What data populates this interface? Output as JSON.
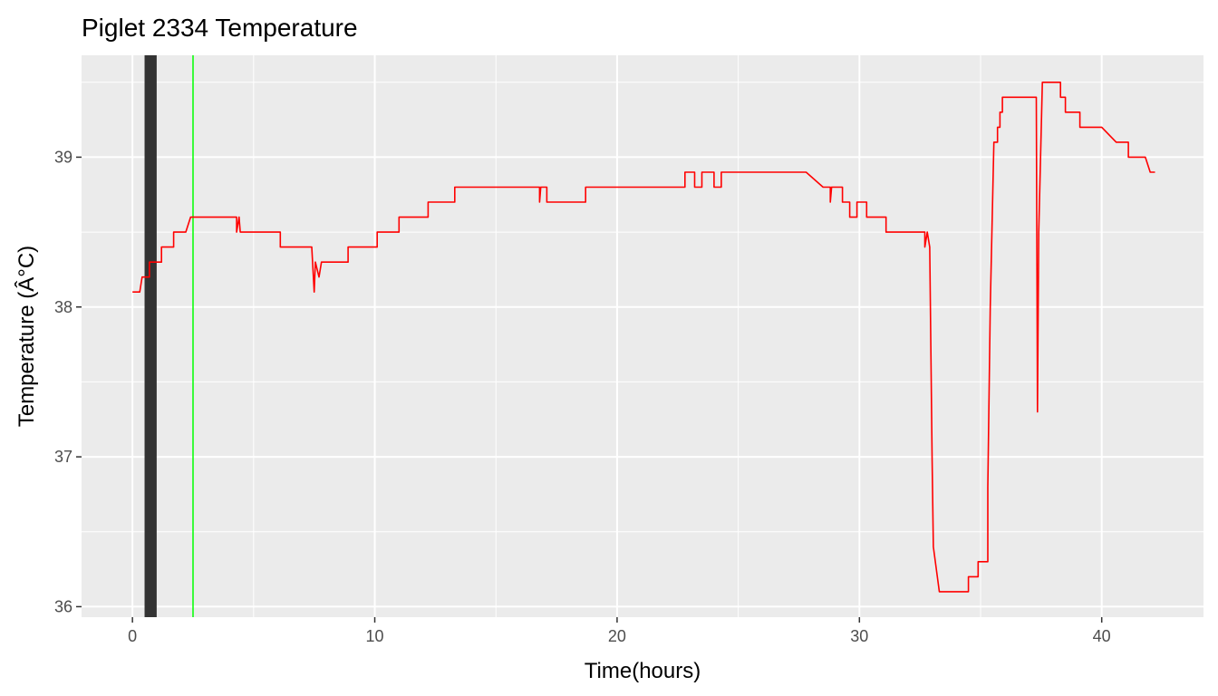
{
  "chart_data": {
    "type": "line",
    "title": "Piglet 2334 Temperature",
    "xlabel": "Time(hours)",
    "ylabel": "Temperature (Â°C)",
    "xlim": [
      -2.1,
      44.2
    ],
    "ylim": [
      35.93,
      39.68
    ],
    "x_ticks": [
      0,
      10,
      20,
      30,
      40
    ],
    "y_ticks": [
      36,
      37,
      38,
      39
    ],
    "x_tick_labels": [
      "0",
      "10",
      "20",
      "30",
      "40"
    ],
    "y_tick_labels": [
      "36",
      "37",
      "38",
      "39"
    ],
    "grid": true,
    "legend": "none",
    "colors": {
      "panel": "#ebebeb",
      "grid": "#ffffff",
      "series": "#ff0000",
      "marker_band": "#333333",
      "marker_line": "#00ff00"
    },
    "vertical_markers": [
      {
        "from": 0.5,
        "to": 1.0,
        "color": "#333333"
      },
      {
        "at": 2.5,
        "color": "#00ff00"
      }
    ],
    "series": [
      {
        "x": [
          0.0,
          0.3,
          0.3,
          0.4,
          0.4,
          0.7,
          0.7,
          0.9,
          0.9,
          1.2,
          1.2,
          1.7,
          1.7,
          2.2,
          2.2,
          2.4,
          2.4,
          4.3,
          4.3,
          4.4,
          4.45,
          4.5,
          4.5,
          6.1,
          6.1,
          7.4,
          7.5,
          7.55,
          7.7,
          7.8,
          7.8,
          8.9,
          8.9,
          10.1,
          10.1,
          11.0,
          11.0,
          12.2,
          12.2,
          13.3,
          13.3,
          16.8,
          16.8,
          16.85,
          16.9,
          17.1,
          17.1,
          17.2,
          17.3,
          18.7,
          18.7,
          22.8,
          22.8,
          23.2,
          23.2,
          23.5,
          23.5,
          24.0,
          24.0,
          24.3,
          24.3,
          27.8,
          28.5,
          28.8,
          28.8,
          28.85,
          28.9,
          29.3,
          29.3,
          29.6,
          29.6,
          29.9,
          29.9,
          30.3,
          30.3,
          31.1,
          31.1,
          31.7,
          31.7,
          32.7,
          32.7,
          32.8,
          32.9,
          33.0,
          33.05,
          33.3,
          33.3,
          34.5,
          34.5,
          34.9,
          34.9,
          35.3,
          35.3,
          35.4,
          35.55,
          35.7,
          35.7,
          35.8,
          35.8,
          35.9,
          35.9,
          37.3,
          37.35,
          37.4,
          37.55,
          37.55,
          37.7,
          37.7,
          38.3,
          38.3,
          38.5,
          38.5,
          38.7,
          38.7,
          39.1,
          39.1,
          39.5,
          40.0,
          40.6,
          40.6,
          41.1,
          41.1,
          41.8,
          41.8,
          42.0,
          42.0,
          42.2
        ],
        "y": [
          38.1,
          38.1,
          38.1,
          38.2,
          38.2,
          38.2,
          38.3,
          38.3,
          38.3,
          38.3,
          38.4,
          38.4,
          38.5,
          38.5,
          38.5,
          38.6,
          38.6,
          38.6,
          38.5,
          38.6,
          38.5,
          38.5,
          38.5,
          38.5,
          38.4,
          38.4,
          38.1,
          38.3,
          38.2,
          38.3,
          38.3,
          38.3,
          38.4,
          38.4,
          38.5,
          38.5,
          38.6,
          38.6,
          38.7,
          38.7,
          38.8,
          38.8,
          38.7,
          38.8,
          38.8,
          38.8,
          38.7,
          38.7,
          38.7,
          38.7,
          38.8,
          38.8,
          38.9,
          38.9,
          38.8,
          38.8,
          38.9,
          38.9,
          38.8,
          38.8,
          38.9,
          38.9,
          38.8,
          38.8,
          38.7,
          38.8,
          38.8,
          38.8,
          38.7,
          38.7,
          38.6,
          38.6,
          38.7,
          38.7,
          38.6,
          38.6,
          38.5,
          38.5,
          38.5,
          38.5,
          38.4,
          38.5,
          38.4,
          37.0,
          36.4,
          36.1,
          36.1,
          36.1,
          36.2,
          36.2,
          36.3,
          36.3,
          36.8,
          38.0,
          39.1,
          39.1,
          39.2,
          39.2,
          39.3,
          39.3,
          39.4,
          39.4,
          37.3,
          38.5,
          39.5,
          39.5,
          39.5,
          39.5,
          39.5,
          39.4,
          39.4,
          39.3,
          39.3,
          39.3,
          39.3,
          39.2,
          39.2,
          39.2,
          39.1,
          39.1,
          39.1,
          39.0,
          39.0,
          39.0,
          38.9,
          38.9,
          38.9
        ]
      }
    ]
  }
}
